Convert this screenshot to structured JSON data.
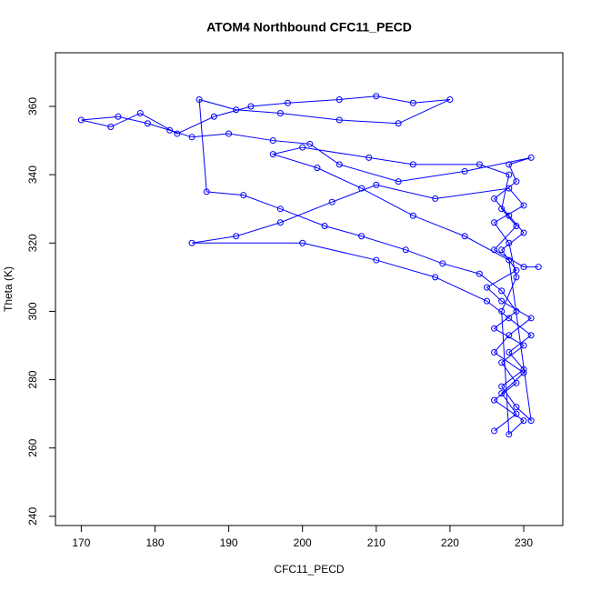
{
  "chart_data": {
    "type": "scatter",
    "lines": true,
    "title": "ATOM4 Northbound CFC11_PECD",
    "x_label": "CFC11_PECD",
    "y_label": "Theta (K)",
    "color": "#0000ff",
    "xlim": [
      166.5,
      235.3
    ],
    "xticks": [
      170,
      180,
      190,
      200,
      210,
      220,
      230
    ],
    "ylim": [
      237.3,
      375.7
    ],
    "yticks": [
      240,
      260,
      280,
      300,
      320,
      340,
      360
    ],
    "x": [
      226,
      229,
      227,
      230,
      226,
      228,
      231,
      227,
      225,
      229,
      227,
      230,
      228,
      226,
      229,
      228,
      231,
      222,
      213,
      205,
      201,
      196,
      190,
      185,
      182,
      179,
      175,
      170,
      174,
      178,
      183,
      188,
      193,
      198,
      205,
      210,
      215,
      220,
      213,
      205,
      197,
      191,
      186,
      187,
      192,
      197,
      203,
      208,
      214,
      219,
      224,
      227,
      229,
      226,
      230,
      227,
      229,
      226,
      230,
      228,
      227,
      229,
      228,
      226,
      230,
      228,
      218,
      210,
      204,
      197,
      191,
      185,
      200,
      210,
      218,
      225,
      228,
      231,
      228,
      230,
      227,
      229,
      231,
      228,
      222,
      215,
      208,
      202,
      196,
      200,
      209,
      215,
      224,
      228,
      227,
      229,
      226,
      230,
      232
    ],
    "y": [
      265,
      270,
      276,
      282,
      288,
      293,
      298,
      303,
      307,
      312,
      318,
      323,
      328,
      333,
      338,
      343,
      345,
      341,
      338,
      343,
      349,
      350,
      352,
      351,
      353,
      355,
      357,
      356,
      354,
      358,
      352,
      357,
      360,
      361,
      362,
      363,
      361,
      362,
      355,
      356,
      358,
      359,
      362,
      335,
      334,
      330,
      325,
      322,
      318,
      314,
      311,
      306,
      300,
      295,
      290,
      285,
      279,
      274,
      268,
      264,
      300,
      310,
      320,
      326,
      331,
      336,
      333,
      337,
      332,
      326,
      322,
      320,
      320,
      315,
      310,
      303,
      298,
      293,
      288,
      283,
      278,
      272,
      268,
      315,
      322,
      328,
      336,
      342,
      346,
      348,
      345,
      343,
      343,
      340,
      330,
      325,
      318,
      313,
      313
    ]
  }
}
